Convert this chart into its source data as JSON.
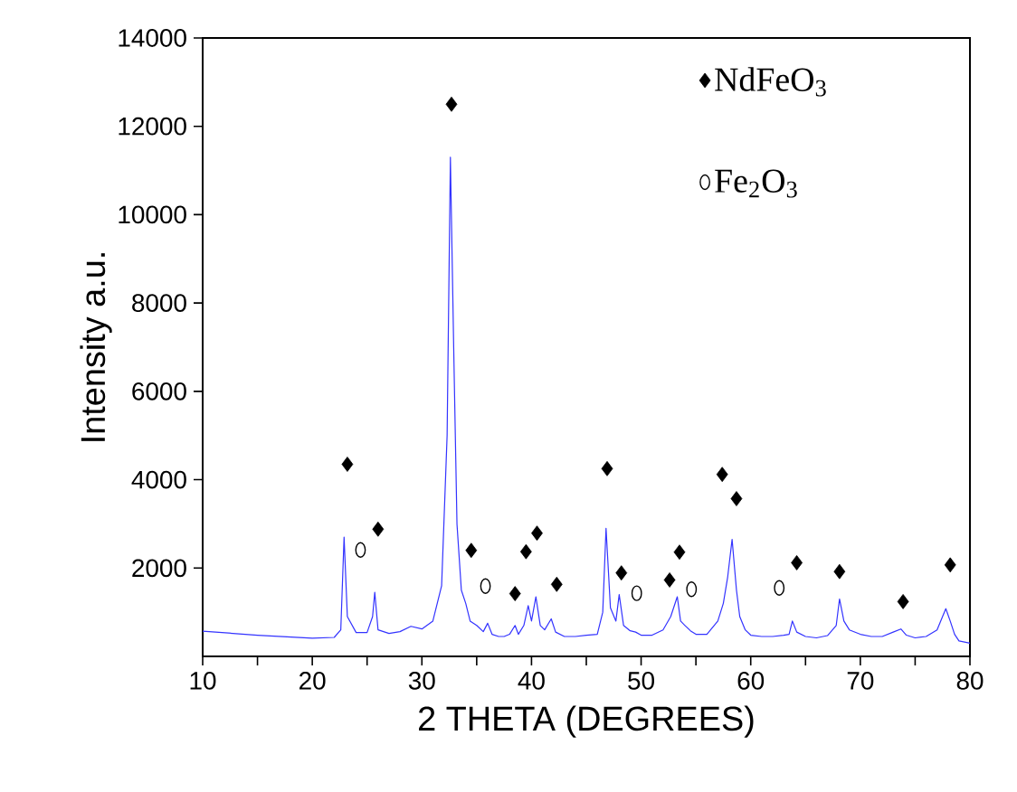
{
  "chart_data": {
    "type": "line",
    "xlabel": "2 THETA (DEGREES)",
    "ylabel": "Intensity a.u.",
    "xlim": [
      10,
      80
    ],
    "ylim": [
      0,
      14000
    ],
    "xticks": [
      10,
      {
        "value": 15,
        "label": null
      },
      20,
      {
        "value": 25,
        "label": null
      },
      30,
      {
        "value": 35,
        "label": null
      },
      40,
      {
        "value": 45,
        "label": null
      },
      50,
      {
        "value": 55,
        "label": null
      },
      60,
      {
        "value": 65,
        "label": null
      },
      70,
      {
        "value": 75,
        "label": null
      },
      80
    ],
    "yticks": [
      2000,
      4000,
      6000,
      8000,
      10000,
      12000,
      14000
    ],
    "legend": "top right",
    "grid": false,
    "series": [
      {
        "color": "#3333ff",
        "marker": "none",
        "line_style": "solid",
        "x": [
          10,
          15,
          20,
          22,
          22.6,
          22.9,
          23.2,
          24,
          25,
          25.5,
          25.7,
          26,
          27,
          28,
          29,
          30,
          31,
          31.8,
          32.3,
          32.6,
          32.9,
          33.2,
          33.6,
          34,
          34.4,
          35,
          35.6,
          36,
          36.4,
          37,
          37.5,
          38,
          38.5,
          38.8,
          39.3,
          39.7,
          40,
          40.4,
          40.8,
          41.2,
          41.8,
          42.2,
          43,
          44,
          45,
          46,
          46.5,
          46.8,
          47.2,
          47.7,
          48,
          48.4,
          49,
          49.5,
          50,
          51,
          52,
          52.7,
          53.3,
          53.6,
          54,
          54.5,
          55,
          56,
          57,
          57.5,
          57.9,
          58.3,
          58.7,
          59,
          59.5,
          60,
          61,
          62,
          63,
          63.5,
          63.8,
          64.2,
          65,
          66,
          67,
          67.8,
          68.1,
          68.5,
          69,
          70,
          71,
          72,
          73,
          73.7,
          74.2,
          75,
          76,
          77,
          77.5,
          77.8,
          78.2,
          78.6,
          79,
          80
        ],
        "values": [
          570,
          480,
          410,
          430,
          600,
          2700,
          900,
          540,
          540,
          900,
          1450,
          600,
          520,
          560,
          680,
          620,
          800,
          1600,
          5000,
          11300,
          7000,
          3000,
          1500,
          1200,
          800,
          700,
          560,
          750,
          500,
          450,
          450,
          500,
          700,
          500,
          700,
          1150,
          800,
          1350,
          700,
          600,
          850,
          550,
          450,
          450,
          480,
          500,
          1000,
          2900,
          1100,
          800,
          1400,
          700,
          580,
          550,
          480,
          480,
          600,
          900,
          1350,
          800,
          700,
          580,
          500,
          500,
          800,
          1200,
          1800,
          2650,
          1500,
          900,
          600,
          480,
          450,
          450,
          480,
          500,
          800,
          550,
          450,
          420,
          470,
          700,
          1300,
          800,
          600,
          500,
          450,
          450,
          550,
          620,
          480,
          420,
          450,
          600,
          900,
          1080,
          800,
          500,
          350,
          300
        ]
      },
      {
        "type": "scatter",
        "name": "NdFeO$_{3}$",
        "color": "#000000",
        "marker": "diamond",
        "x": [
          23.2,
          26.0,
          32.7,
          34.5,
          38.5,
          39.5,
          40.5,
          42.3,
          46.9,
          48.2,
          52.6,
          53.5,
          57.4,
          58.7,
          64.2,
          68.1,
          73.9,
          78.2
        ],
        "values": [
          4350,
          2880,
          12500,
          2400,
          1420,
          2370,
          2790,
          1630,
          4250,
          1890,
          1730,
          2360,
          4120,
          3570,
          2120,
          1920,
          1240,
          2070
        ]
      },
      {
        "type": "scatter",
        "name": "Fe$_{2}$O$_{3}$",
        "color": "#000000",
        "marker": "circle",
        "x": [
          24.4,
          35.8,
          49.6,
          54.6,
          62.6
        ],
        "values": [
          2410,
          1590,
          1430,
          1520,
          1550
        ]
      }
    ]
  }
}
